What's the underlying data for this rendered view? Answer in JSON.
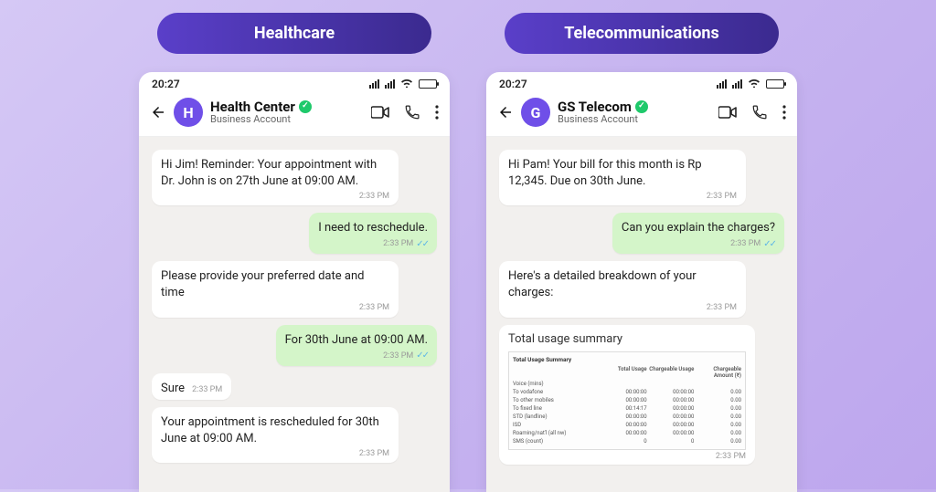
{
  "colors": {
    "pill_gradient_start": "#5a3fc9",
    "pill_gradient_end": "#3b2a8f",
    "avatar_bg": "#6f4fe8",
    "verify_bg": "#1fc96b",
    "outgoing_bg": "#d4f5c9",
    "incoming_bg": "#ffffff",
    "chat_bg": "#f2f0ee",
    "page_bg_start": "#d5c8f5",
    "page_bg_end": "#bda6ed",
    "tick_color": "#5fb7e6"
  },
  "status": {
    "time": "20:27"
  },
  "left": {
    "pill": "Healthcare",
    "avatar_letter": "H",
    "contact_name": "Health Center",
    "subtitle": "Business Account",
    "messages": {
      "m1": {
        "text": "Hi Jim! Reminder: Your appointment with Dr. John is on 27th June at 09:00 AM.",
        "time": "2:33 PM"
      },
      "m2": {
        "text": "I need to reschedule.",
        "time": "2:33 PM"
      },
      "m3": {
        "text": "Please provide your preferred date and time",
        "time": "2:33 PM"
      },
      "m4": {
        "text": "For 30th June at 09:00 AM.",
        "time": "2:33 PM"
      },
      "m5": {
        "text": "Sure",
        "time": "2:33 PM"
      },
      "m6": {
        "text": "Your appointment is rescheduled for 30th June at 09:00 AM.",
        "time": "2:33 PM"
      }
    }
  },
  "right": {
    "pill": "Telecommunications",
    "avatar_letter": "G",
    "contact_name": "GS Telecom",
    "subtitle": "Business Account",
    "messages": {
      "m1": {
        "text": "Hi Pam! Your bill for this month is Rp 12,345. Due on 30th June.",
        "time": "2:33 PM"
      },
      "m2": {
        "text": "Can you explain the charges?",
        "time": "2:33 PM"
      },
      "m3": {
        "text": "Here's a detailed breakdown of your charges:",
        "time": "2:33 PM"
      }
    },
    "attachment": {
      "title": "Total usage summary",
      "time": "2:33 PM",
      "table_heading": "Total Usage Summary",
      "columns": [
        "",
        "Total Usage",
        "Chargeable Usage",
        "Chargeable Amount (₹)"
      ],
      "rows": [
        [
          "Voice (mins)",
          "",
          "",
          ""
        ],
        [
          "  To vodafone",
          "00:00:00",
          "00:00:00",
          "0.00"
        ],
        [
          "  To other mobiles",
          "00:00:00",
          "00:00:00",
          "0.00"
        ],
        [
          "  To fixed line",
          "00:14:17",
          "00:00:00",
          "0.00"
        ],
        [
          "  STD (landline)",
          "00:00:00",
          "00:00:00",
          "0.00"
        ],
        [
          "  ISD",
          "00:00:00",
          "00:00:00",
          "0.00"
        ],
        [
          "Roaming/nat'l (all nw)",
          "00:00:00",
          "00:00:00",
          "0.00"
        ],
        [
          "SMS (count)",
          "0",
          "0",
          "0.00"
        ]
      ]
    }
  }
}
